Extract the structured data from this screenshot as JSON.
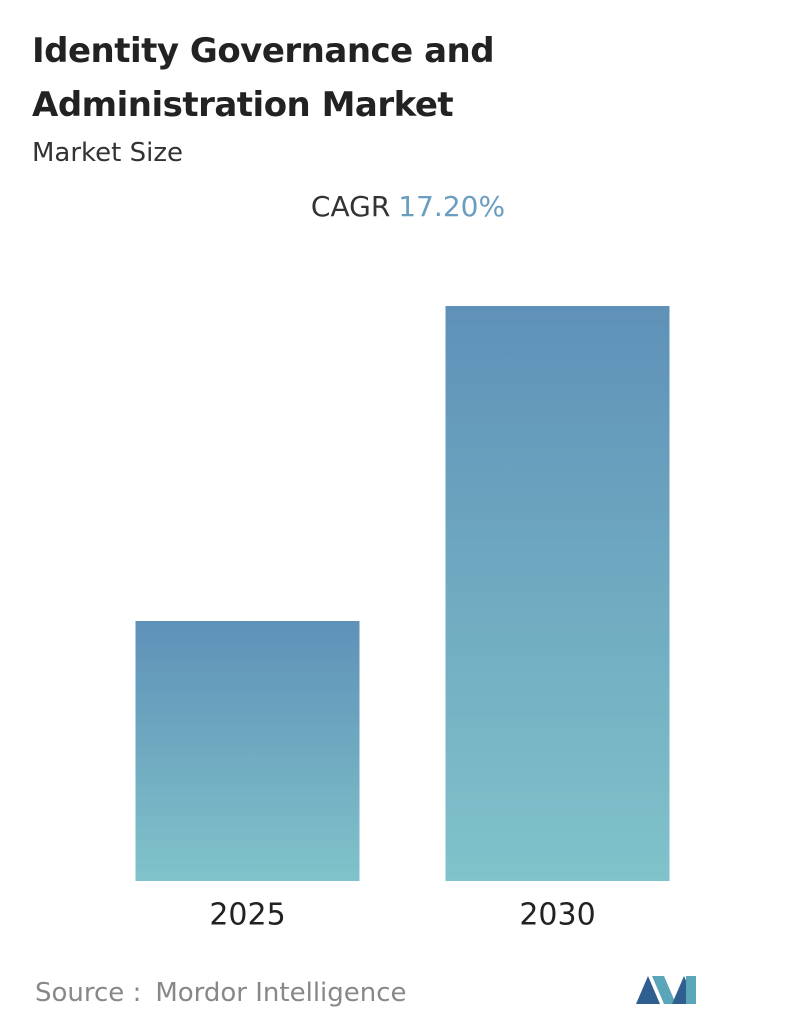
{
  "chart_data": {
    "type": "bar",
    "title": "Identity Governance and Administration Market",
    "subtitle": "Market Size",
    "cagr_label": "CAGR",
    "cagr_value": "17.20%",
    "categories": [
      "2025",
      "2030"
    ],
    "values": [
      2.6,
      5.75
    ],
    "ylim": [
      0,
      6
    ],
    "color_top": "#5f91b8",
    "color_bottom": "#80c3ca",
    "source_label": "Source :",
    "source": "Mordor Intelligence"
  }
}
